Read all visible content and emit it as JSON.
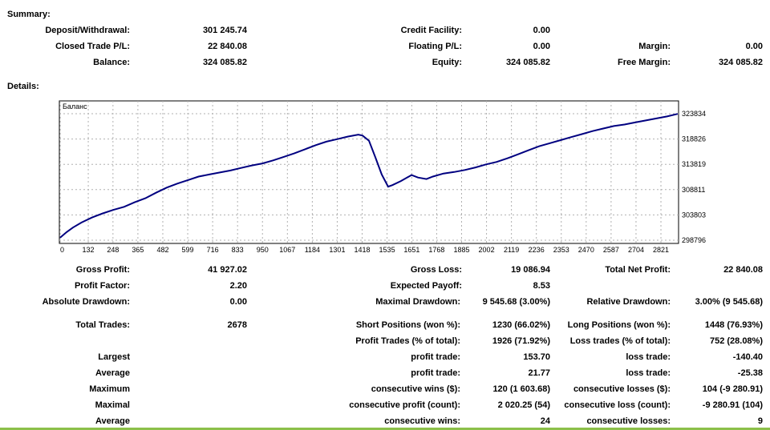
{
  "summary": {
    "heading": "Summary:",
    "deposit_label": "Deposit/Withdrawal:",
    "deposit_value": "301 245.74",
    "closed_label": "Closed Trade P/L:",
    "closed_value": "22 840.08",
    "balance_label": "Balance:",
    "balance_value": "324 085.82",
    "credit_label": "Credit Facility:",
    "credit_value": "0.00",
    "floating_label": "Floating P/L:",
    "floating_value": "0.00",
    "equity_label": "Equity:",
    "equity_value": "324 085.82",
    "margin_label": "Margin:",
    "margin_value": "0.00",
    "free_margin_label": "Free Margin:",
    "free_margin_value": "324 085.82"
  },
  "details": {
    "heading": "Details:"
  },
  "chart_data": {
    "type": "line",
    "title": "Баланс",
    "xlabel": "",
    "ylabel": "",
    "x_ticks": [
      0,
      132,
      248,
      365,
      482,
      599,
      716,
      833,
      950,
      1067,
      1184,
      1301,
      1418,
      1535,
      1651,
      1768,
      1885,
      2002,
      2119,
      2236,
      2353,
      2470,
      2587,
      2704,
      2821
    ],
    "y_ticks": [
      298796,
      303803,
      308811,
      313819,
      318826,
      323834
    ],
    "xlim": [
      0,
      2900
    ],
    "ylim": [
      298796,
      323834
    ],
    "grid": true,
    "line_color": "#000080",
    "series": [
      {
        "x": [
          0,
          30,
          60,
          100,
          150,
          200,
          250,
          300,
          350,
          400,
          450,
          500,
          550,
          600,
          650,
          700,
          750,
          800,
          850,
          900,
          950,
          1000,
          1050,
          1100,
          1150,
          1200,
          1250,
          1300,
          1350,
          1400,
          1420,
          1450,
          1480,
          1510,
          1540,
          1560,
          1600,
          1650,
          1680,
          1720,
          1750,
          1800,
          1850,
          1900,
          1950,
          2000,
          2050,
          2100,
          2150,
          2200,
          2250,
          2300,
          2350,
          2400,
          2450,
          2500,
          2550,
          2600,
          2650,
          2700,
          2750,
          2800,
          2850,
          2900
        ],
        "y": [
          299300,
          300400,
          301300,
          302300,
          303300,
          304100,
          304800,
          305400,
          306300,
          307100,
          308200,
          309200,
          310000,
          310700,
          311400,
          311800,
          312200,
          312600,
          313100,
          313600,
          314000,
          314600,
          315300,
          316000,
          316800,
          317600,
          318300,
          318800,
          319300,
          319700,
          319500,
          318500,
          315200,
          311800,
          309400,
          309700,
          310500,
          311700,
          311200,
          310900,
          311400,
          312000,
          312300,
          312700,
          313200,
          313800,
          314300,
          315000,
          315800,
          316600,
          317400,
          318000,
          318600,
          319200,
          319800,
          320400,
          320900,
          321400,
          321700,
          322100,
          322500,
          322900,
          323300,
          323800
        ]
      }
    ]
  },
  "stats": {
    "gross_profit_label": "Gross Profit:",
    "gross_profit_value": "41 927.02",
    "gross_loss_label": "Gross Loss:",
    "gross_loss_value": "19 086.94",
    "total_net_label": "Total Net Profit:",
    "total_net_value": "22 840.08",
    "profit_factor_label": "Profit Factor:",
    "profit_factor_value": "2.20",
    "expected_payoff_label": "Expected Payoff:",
    "expected_payoff_value": "8.53",
    "abs_dd_label": "Absolute Drawdown:",
    "abs_dd_value": "0.00",
    "max_dd_label": "Maximal Drawdown:",
    "max_dd_value": "9 545.68 (3.00%)",
    "rel_dd_label": "Relative Drawdown:",
    "rel_dd_value": "3.00% (9 545.68)",
    "total_trades_label": "Total Trades:",
    "total_trades_value": "2678",
    "short_label": "Short Positions (won %):",
    "short_value": "1230 (66.02%)",
    "long_label": "Long Positions (won %):",
    "long_value": "1448 (76.93%)",
    "profit_trades_label": "Profit Trades (% of total):",
    "profit_trades_value": "1926 (71.92%)",
    "loss_trades_label": "Loss trades (% of total):",
    "loss_trades_value": "752 (28.08%)",
    "largest_label": "Largest",
    "largest_profit_label": "profit trade:",
    "largest_profit_value": "153.70",
    "largest_loss_label": "loss trade:",
    "largest_loss_value": "-140.40",
    "average_label": "Average",
    "avg_profit_label": "profit trade:",
    "avg_profit_value": "21.77",
    "avg_loss_label": "loss trade:",
    "avg_loss_value": "-25.38",
    "maximum_label": "Maximum",
    "max_wins_label": "consecutive wins ($):",
    "max_wins_value": "120 (1 603.68)",
    "max_losses_label": "consecutive losses ($):",
    "max_losses_value": "104 (-9 280.91)",
    "maximal_label": "Maximal",
    "maximal_profit_label": "consecutive profit (count):",
    "maximal_profit_value": "2 020.25 (54)",
    "maximal_loss_label": "consecutive loss (count):",
    "maximal_loss_value": "-9 280.91 (104)",
    "average2_label": "Average",
    "avg_cons_wins_label": "consecutive wins:",
    "avg_cons_wins_value": "24",
    "avg_cons_losses_label": "consecutive losses:",
    "avg_cons_losses_value": "9"
  }
}
